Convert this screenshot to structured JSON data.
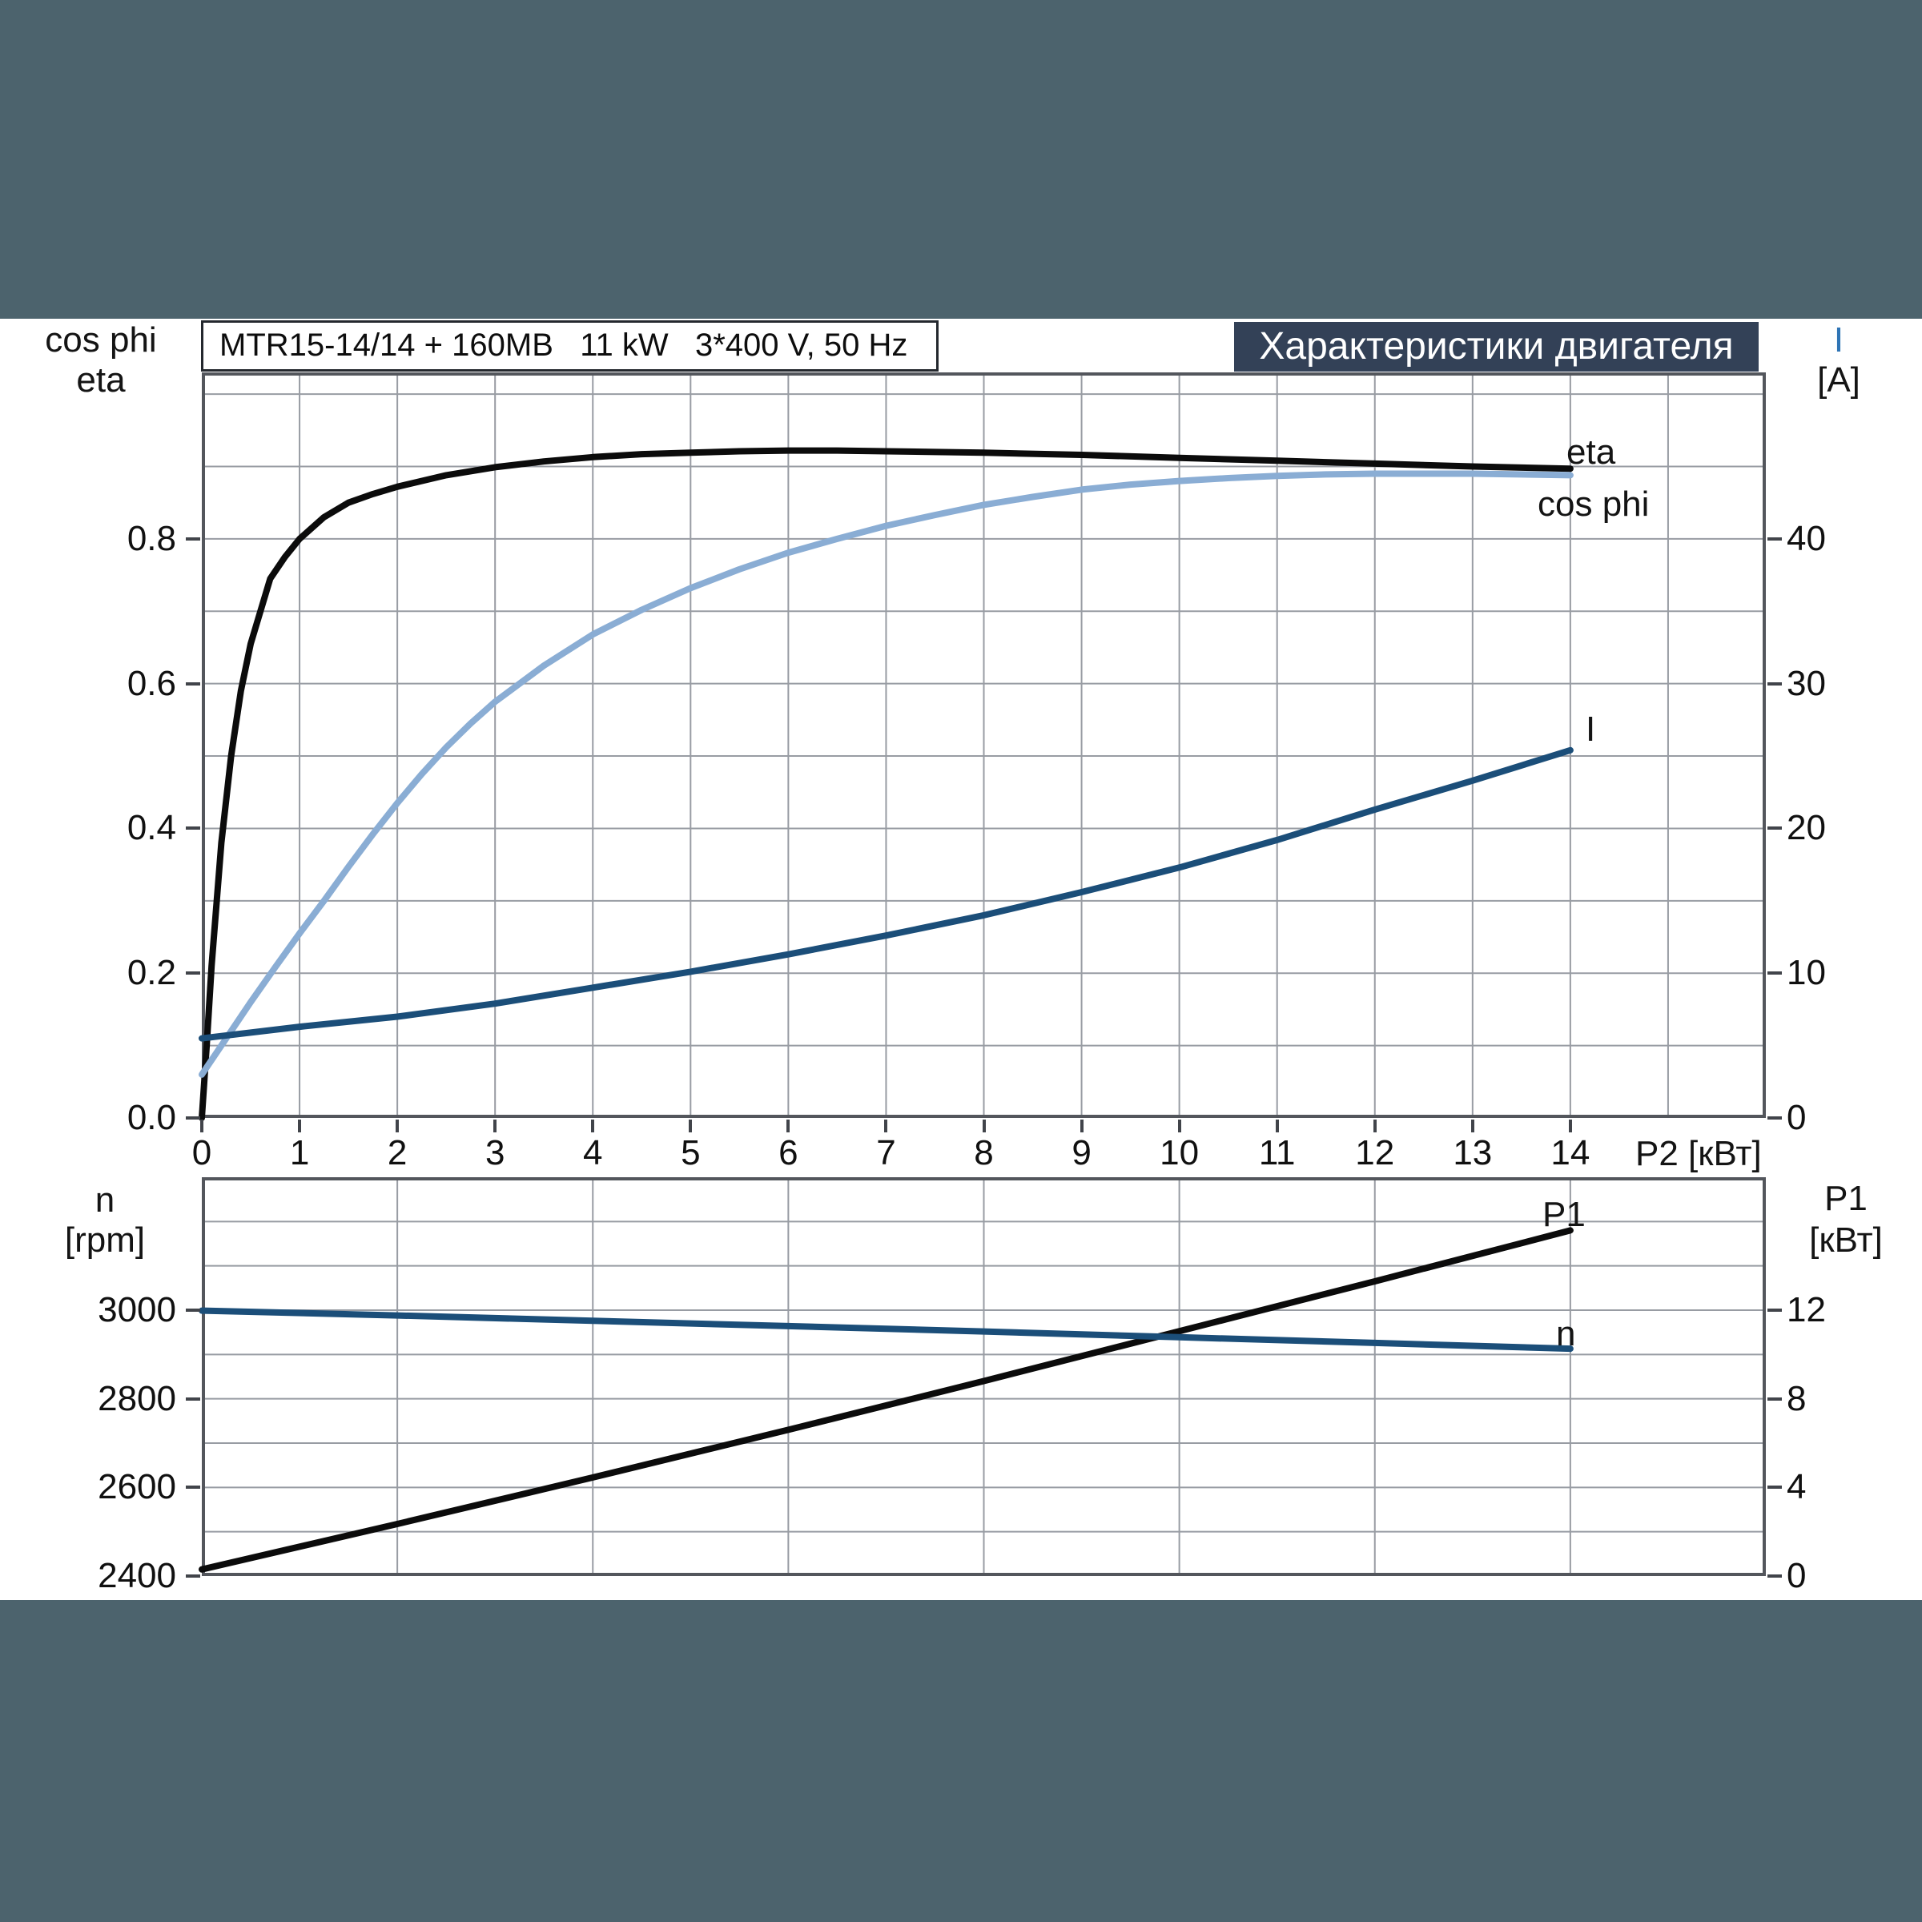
{
  "page": {
    "surround_color": "#4c636d",
    "canvas_color": "#ffffff",
    "grid_color": "#989ca3",
    "border_color": "#53565c"
  },
  "header": {
    "title_box_text": "MTR15-14/14 + 160MB   11 kW   3*400 V, 50 Hz",
    "banner_text": "Характеристики двигателя",
    "banner_bg": "#334157",
    "banner_fg": "#ffffff"
  },
  "labels": {
    "top_left_line1": "cos phi",
    "top_left_line2": "eta",
    "top_right_line1": "I",
    "top_right_line2": "[A]",
    "x_axis_label": "P2 [кВт]",
    "bottom_left_line1": "n",
    "bottom_left_line2": "[rpm]",
    "bottom_right_line1": "P1",
    "bottom_right_line2": "[кВт]"
  },
  "chart_data": [
    {
      "type": "line",
      "title": "MTR15-14/14 + 160MB 11 kW 3*400 V, 50 Hz — Характеристики двигателя",
      "xlabel": "P2 [кВт]",
      "ylabel_left": "cos phi / eta",
      "ylabel_right": "I [A]",
      "legend_position": "inline-right",
      "grid": true,
      "x_axis": {
        "min": 0,
        "max": 16,
        "grid_step": 1,
        "tick_values": [
          0,
          1,
          2,
          3,
          4,
          5,
          6,
          7,
          8,
          9,
          10,
          11,
          12,
          13,
          14
        ],
        "tick_labels": [
          "0",
          "1",
          "2",
          "3",
          "4",
          "5",
          "6",
          "7",
          "8",
          "9",
          "10",
          "11",
          "12",
          "13",
          "14"
        ]
      },
      "y_left": {
        "min": 0,
        "max": 1.03,
        "grid_step": 0.1,
        "grid_top": 1.0,
        "tick_values": [
          0,
          0.2,
          0.4,
          0.6,
          0.8
        ],
        "tick_labels": [
          "0.0",
          "0.2",
          "0.4",
          "0.6",
          "0.8"
        ]
      },
      "y_right": {
        "min": 0,
        "max": 51.5,
        "tick_values": [
          0,
          10,
          20,
          30,
          40
        ],
        "tick_labels": [
          "0",
          "10",
          "20",
          "30",
          "40"
        ]
      },
      "series": [
        {
          "name": "eta",
          "label": "eta",
          "axis": "left",
          "color": "#0b0b0b",
          "points": [
            [
              0,
              0
            ],
            [
              0.05,
              0.1
            ],
            [
              0.1,
              0.21
            ],
            [
              0.2,
              0.38
            ],
            [
              0.3,
              0.5
            ],
            [
              0.4,
              0.59
            ],
            [
              0.5,
              0.655
            ],
            [
              0.7,
              0.745
            ],
            [
              0.85,
              0.775
            ],
            [
              1,
              0.8
            ],
            [
              1.25,
              0.83
            ],
            [
              1.5,
              0.85
            ],
            [
              1.75,
              0.862
            ],
            [
              2,
              0.872
            ],
            [
              2.5,
              0.888
            ],
            [
              3,
              0.899
            ],
            [
              3.5,
              0.907
            ],
            [
              4,
              0.913
            ],
            [
              4.5,
              0.917
            ],
            [
              5,
              0.919
            ],
            [
              5.5,
              0.921
            ],
            [
              6,
              0.922
            ],
            [
              6.5,
              0.922
            ],
            [
              7,
              0.921
            ],
            [
              7.5,
              0.92
            ],
            [
              8,
              0.919
            ],
            [
              9,
              0.916
            ],
            [
              10,
              0.912
            ],
            [
              11,
              0.908
            ],
            [
              12,
              0.904
            ],
            [
              13,
              0.9
            ],
            [
              14,
              0.897
            ]
          ]
        },
        {
          "name": "cos phi",
          "label": "cos phi",
          "axis": "left",
          "color": "#8aadd4",
          "points": [
            [
              0,
              0.06
            ],
            [
              0.25,
              0.11
            ],
            [
              0.5,
              0.16
            ],
            [
              0.75,
              0.208
            ],
            [
              1,
              0.255
            ],
            [
              1.25,
              0.3
            ],
            [
              1.5,
              0.347
            ],
            [
              1.75,
              0.392
            ],
            [
              2,
              0.435
            ],
            [
              2.25,
              0.475
            ],
            [
              2.5,
              0.512
            ],
            [
              2.75,
              0.545
            ],
            [
              3,
              0.575
            ],
            [
              3.5,
              0.625
            ],
            [
              4,
              0.668
            ],
            [
              4.5,
              0.702
            ],
            [
              5,
              0.732
            ],
            [
              5.5,
              0.758
            ],
            [
              6,
              0.781
            ],
            [
              6.5,
              0.8
            ],
            [
              7,
              0.818
            ],
            [
              7.5,
              0.833
            ],
            [
              8,
              0.847
            ],
            [
              8.5,
              0.858
            ],
            [
              9,
              0.868
            ],
            [
              9.5,
              0.875
            ],
            [
              10,
              0.88
            ],
            [
              10.5,
              0.884
            ],
            [
              11,
              0.887
            ],
            [
              11.5,
              0.889
            ],
            [
              12,
              0.89
            ],
            [
              12.5,
              0.89
            ],
            [
              13,
              0.89
            ],
            [
              13.5,
              0.889
            ],
            [
              14,
              0.888
            ]
          ]
        },
        {
          "name": "I",
          "label": "I",
          "axis": "right",
          "color": "#1b4e79",
          "points": [
            [
              0,
              5.5
            ],
            [
              1,
              6.3
            ],
            [
              2,
              7.0
            ],
            [
              3,
              7.9
            ],
            [
              4,
              9.0
            ],
            [
              5,
              10.1
            ],
            [
              6,
              11.3
            ],
            [
              7,
              12.6
            ],
            [
              8,
              14.0
            ],
            [
              9,
              15.6
            ],
            [
              10,
              17.3
            ],
            [
              11,
              19.2
            ],
            [
              12,
              21.3
            ],
            [
              13,
              23.3
            ],
            [
              14,
              25.4
            ]
          ]
        }
      ]
    },
    {
      "type": "line",
      "title": "Speed and input power vs shaft power",
      "xlabel": "P2 [кВт]",
      "ylabel_left": "n [rpm]",
      "ylabel_right": "P1 [кВт]",
      "grid": true,
      "x_axis": {
        "min": 0,
        "max": 16,
        "grid_step": 2,
        "tick_values": [],
        "tick_labels": []
      },
      "y_left": {
        "min": 2400,
        "max": 3300,
        "grid_step": 100,
        "grid_top": 3200,
        "tick_values": [
          2400,
          2600,
          2800,
          3000
        ],
        "tick_labels": [
          "2400",
          "2600",
          "2800",
          "3000"
        ]
      },
      "y_right": {
        "min": 0,
        "max": 18,
        "tick_values": [
          0,
          4,
          8,
          12
        ],
        "tick_labels": [
          "0",
          "4",
          "8",
          "12"
        ]
      },
      "series": [
        {
          "name": "P1",
          "label": "P1",
          "axis": "right",
          "color": "#0b0b0b",
          "points": [
            [
              0,
              0.3
            ],
            [
              2,
              2.35
            ],
            [
              4,
              4.45
            ],
            [
              6,
              6.6
            ],
            [
              8,
              8.8
            ],
            [
              10,
              11.05
            ],
            [
              12,
              13.3
            ],
            [
              14,
              15.6
            ]
          ]
        },
        {
          "name": "n",
          "label": "n",
          "axis": "left",
          "color": "#1b4e79",
          "points": [
            [
              0,
              2999
            ],
            [
              2,
              2988
            ],
            [
              4,
              2976
            ],
            [
              6,
              2964
            ],
            [
              8,
              2952
            ],
            [
              10,
              2939
            ],
            [
              12,
              2926
            ],
            [
              14,
              2913
            ]
          ]
        }
      ]
    }
  ]
}
